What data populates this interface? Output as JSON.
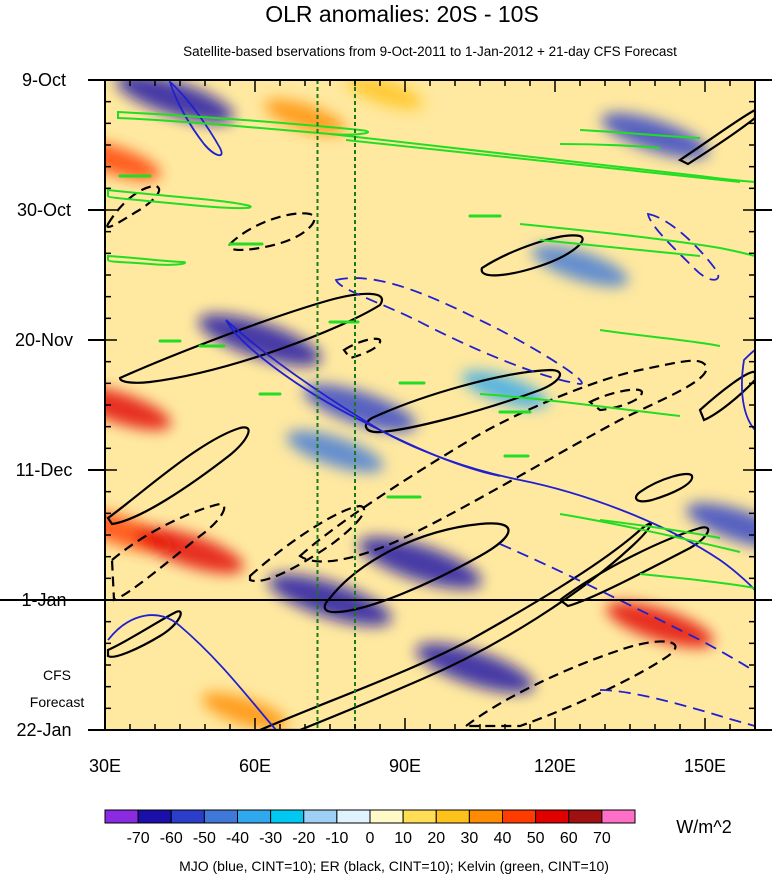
{
  "chart_data": {
    "type": "heatmap",
    "title": "OLR anomalies: 20S - 10S",
    "subtitle": "Satellite-based bservations from 9-Oct-2011 to 1-Jan-2012 + 21-day CFS Forecast",
    "xlabel": "",
    "ylabel": "",
    "x_range": [
      30,
      160
    ],
    "x_ticks": [
      {
        "value": 30,
        "label": "30E"
      },
      {
        "value": 60,
        "label": "60E"
      },
      {
        "value": 90,
        "label": "90E"
      },
      {
        "value": 120,
        "label": "120E"
      },
      {
        "value": 150,
        "label": "150E"
      }
    ],
    "time_range_days": [
      0,
      105
    ],
    "y_ticks": [
      {
        "day": 0,
        "label": "9-Oct"
      },
      {
        "day": 21,
        "label": "30-Oct"
      },
      {
        "day": 42,
        "label": "20-Nov"
      },
      {
        "day": 63,
        "label": "11-Dec"
      },
      {
        "day": 84,
        "label": "1-Jan"
      },
      {
        "day": 105,
        "label": "22-Jan"
      }
    ],
    "forecast_divider_day": 84,
    "forecast_label": [
      "CFS",
      "Forecast"
    ],
    "reference_longitudes": [
      72.5,
      80
    ],
    "colorbar": {
      "levels": [
        "-70",
        "-60",
        "-50",
        "-40",
        "-30",
        "-20",
        "-10",
        "0",
        "10",
        "20",
        "30",
        "40",
        "50",
        "60",
        "70"
      ],
      "colors": [
        "#8a2be2",
        "#1a0fa8",
        "#2b3ec9",
        "#3f78d9",
        "#2fa8ee",
        "#00c8f0",
        "#9ecff5",
        "#dff3ff",
        "#fffbc8",
        "#ffde55",
        "#ffc21a",
        "#ff8c00",
        "#ff3b00",
        "#e10000",
        "#a01010",
        "#ff6ec7"
      ],
      "units": "W/m^2"
    },
    "anomaly_features": [
      {
        "lon": 44,
        "day": 3,
        "value": -65
      },
      {
        "lon": 86,
        "day": 2,
        "value": 25
      },
      {
        "lon": 140,
        "day": 9,
        "value": -55
      },
      {
        "lon": 32,
        "day": 13,
        "value": 40
      },
      {
        "lon": 61,
        "day": 42,
        "value": -70
      },
      {
        "lon": 81,
        "day": 53,
        "value": -60
      },
      {
        "lon": 33,
        "day": 53,
        "value": 50
      },
      {
        "lon": 76,
        "day": 60,
        "value": -45
      },
      {
        "lon": 125,
        "day": 30,
        "value": -45
      },
      {
        "lon": 34,
        "day": 73,
        "value": 45
      },
      {
        "lon": 47,
        "day": 76,
        "value": 55
      },
      {
        "lon": 93,
        "day": 78,
        "value": -70
      },
      {
        "lon": 75,
        "day": 84,
        "value": -70
      },
      {
        "lon": 104,
        "day": 95,
        "value": -65
      },
      {
        "lon": 141,
        "day": 88,
        "value": 55
      },
      {
        "lon": 157,
        "day": 72,
        "value": -55
      },
      {
        "lon": 58,
        "day": 102,
        "value": 35
      },
      {
        "lon": 70,
        "day": 6,
        "value": 30
      },
      {
        "lon": 110,
        "day": 50,
        "value": -35
      }
    ],
    "series": [
      {
        "name": "MJO",
        "color": "#2020d0",
        "cint": 10
      },
      {
        "name": "ER",
        "color": "#000000",
        "cint": 10
      },
      {
        "name": "Kelvin",
        "color": "#22dd22",
        "cint": 10
      }
    ],
    "footnote": "MJO (blue, CINT=10); ER (black, CINT=10); Kelvin (green, CINT=10)"
  }
}
